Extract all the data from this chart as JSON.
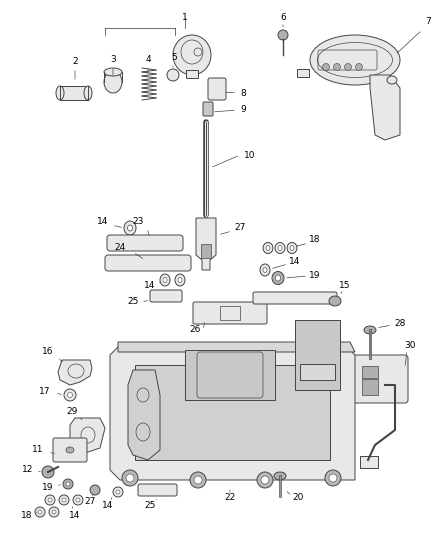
{
  "background_color": "#ffffff",
  "fig_width": 4.38,
  "fig_height": 5.33,
  "dpi": 100,
  "line_color": "#333333",
  "label_color": "#000000",
  "font_size": 6.5,
  "line_width": 0.7,
  "parts_color": "#e8e8e8",
  "parts_edge": "#444444",
  "dark_parts": "#b0b0b0"
}
